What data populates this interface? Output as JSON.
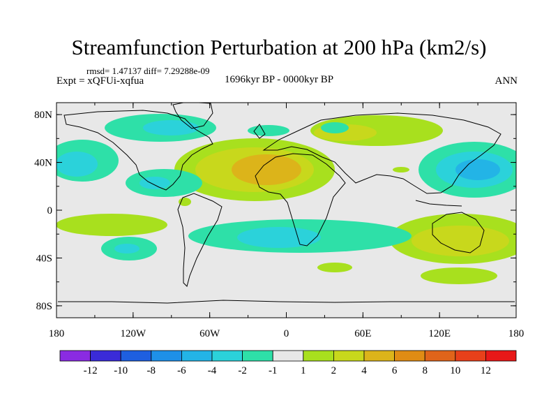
{
  "title": "Streamfunction Perturbation at 200 hPa (km2/s)",
  "stats_line": "rmsd= 1.47137 diff= 7.29288e-09",
  "experiment": "Expt = xQFUi-xqfua",
  "period": "1696kyr BP - 0000kyr BP",
  "season": "ANN",
  "lat_labels": [
    "80N",
    "40N",
    "0",
    "40S",
    "80S"
  ],
  "lat_values": [
    80,
    40,
    0,
    -40,
    -80
  ],
  "lon_labels": [
    "180",
    "120W",
    "60W",
    "0",
    "60E",
    "120E",
    "180"
  ],
  "lon_values": [
    -180,
    -120,
    -60,
    0,
    60,
    120,
    180
  ],
  "colorbar": {
    "colors": [
      "#8a2be2",
      "#3a2bd8",
      "#1e5fe0",
      "#1e90e8",
      "#23b4e6",
      "#2bd2da",
      "#2ee0a8",
      "#e8e8e8",
      "#a8e01e",
      "#c8d81c",
      "#dcb41a",
      "#e08c14",
      "#e0641a",
      "#e8401a",
      "#e81818"
    ],
    "labels": [
      "-12",
      "-10",
      "-8",
      "-6",
      "-4",
      "-2",
      "-1",
      "1",
      "2",
      "4",
      "6",
      "8",
      "10",
      "12"
    ]
  },
  "legend": {
    "background": "#e8e8e8",
    "coastline": "#000000"
  }
}
